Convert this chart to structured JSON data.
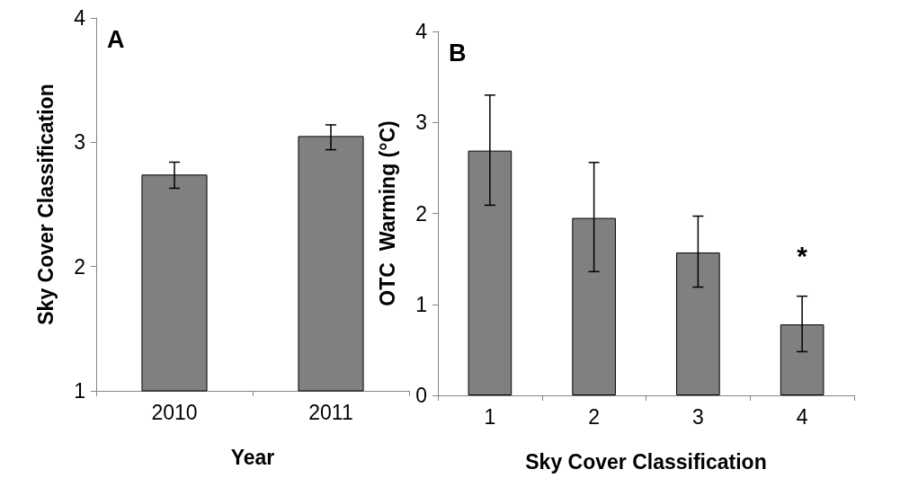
{
  "chart_data": [
    {
      "type": "bar",
      "categories": [
        "2010",
        "2011"
      ],
      "values": [
        2.74,
        3.05
      ],
      "color": "#808080",
      "errors": [
        [
          2.63,
          2.84
        ],
        [
          2.94,
          3.14
        ]
      ],
      "xlabel": "Year",
      "ylabel": "Sky Cover Classification",
      "ylim": [
        1,
        4
      ],
      "yticks": [
        1,
        2,
        3,
        4
      ],
      "grid": false,
      "annotations": [
        "A"
      ]
    },
    {
      "type": "bar",
      "categories": [
        "1",
        "2",
        "3",
        "4"
      ],
      "values": [
        2.69,
        1.95,
        1.57,
        0.78
      ],
      "color": "#808080",
      "errors": [
        [
          2.09,
          3.3
        ],
        [
          1.36,
          2.56
        ],
        [
          1.19,
          1.97
        ],
        [
          0.48,
          1.09
        ]
      ],
      "xlabel": "Sky Cover Classification",
      "ylabel": "OTC  Warming (°C)",
      "ylim": [
        0,
        4
      ],
      "yticks": [
        0,
        1,
        2,
        3,
        4
      ],
      "grid": false,
      "annotations": [
        "B",
        "*"
      ]
    }
  ]
}
